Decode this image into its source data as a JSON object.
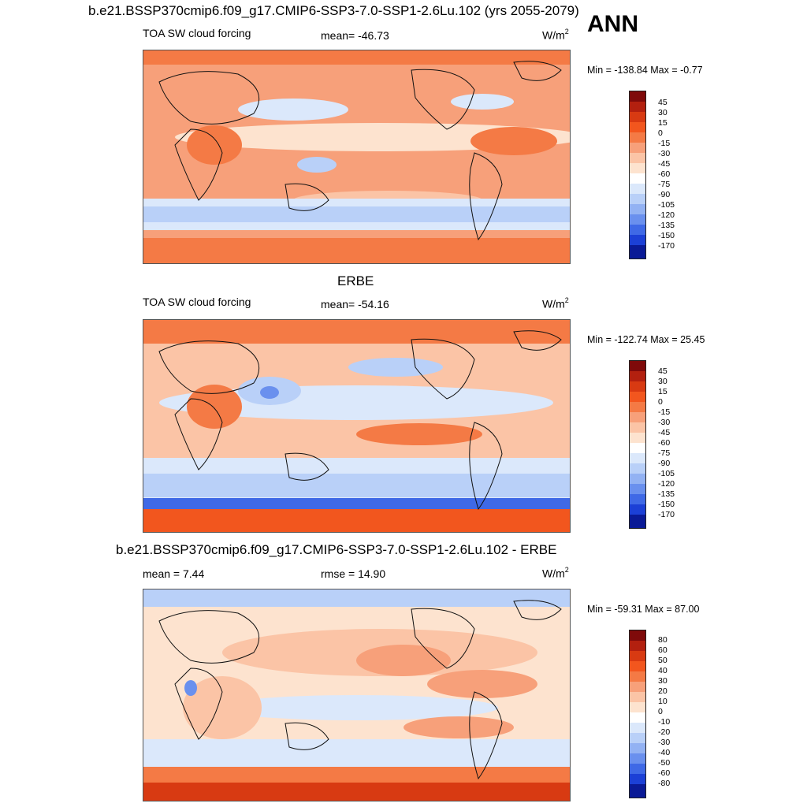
{
  "corner_label": "ANN",
  "panels": [
    {
      "title": "b.e21.BSSP370cmip6.f09_g17.CMIP6-SSP3-7.0-SSP1-2.6Lu.102 (yrs 2055-2079)",
      "left_label": "TOA SW cloud forcing",
      "center_label": "mean= -46.73",
      "unit": "W/m",
      "unit_sup": "2",
      "minmax": "Min = -138.84 Max =  -0.77",
      "colorbar": [
        "45",
        "30",
        "15",
        "0",
        "-15",
        "-30",
        "-45",
        "-60",
        "-75",
        "-90",
        "-105",
        "-120",
        "-135",
        "-150",
        "-170"
      ]
    },
    {
      "title": "ERBE",
      "left_label": "TOA SW cloud forcing",
      "center_label": "mean= -54.16",
      "unit": "W/m",
      "unit_sup": "2",
      "minmax": "Min = -122.74 Max =  25.45",
      "colorbar": [
        "45",
        "30",
        "15",
        "0",
        "-15",
        "-30",
        "-45",
        "-60",
        "-75",
        "-90",
        "-105",
        "-120",
        "-135",
        "-150",
        "-170"
      ]
    },
    {
      "title": "b.e21.BSSP370cmip6.f09_g17.CMIP6-SSP3-7.0-SSP1-2.6Lu.102 - ERBE",
      "left_label": "mean =   7.44",
      "center_label": "rmse =  14.90",
      "unit": "W/m",
      "unit_sup": "2",
      "minmax": "Min = -59.31 Max =  87.00",
      "colorbar": [
        "80",
        "60",
        "50",
        "40",
        "30",
        "20",
        "10",
        "0",
        "-10",
        "-20",
        "-30",
        "-40",
        "-50",
        "-60",
        "-80"
      ]
    }
  ],
  "colors": {
    "palette": [
      "#7f0a0a",
      "#b3200f",
      "#d83a12",
      "#f2561e",
      "#f47a45",
      "#f7a07a",
      "#fbc4a6",
      "#fde3cf",
      "#ffffff",
      "#dbe8fb",
      "#b9d0f8",
      "#93b2f3",
      "#6a90ee",
      "#3f69e6",
      "#1c40d6",
      "#0a1a96"
    ],
    "land_outline": "#111111"
  }
}
